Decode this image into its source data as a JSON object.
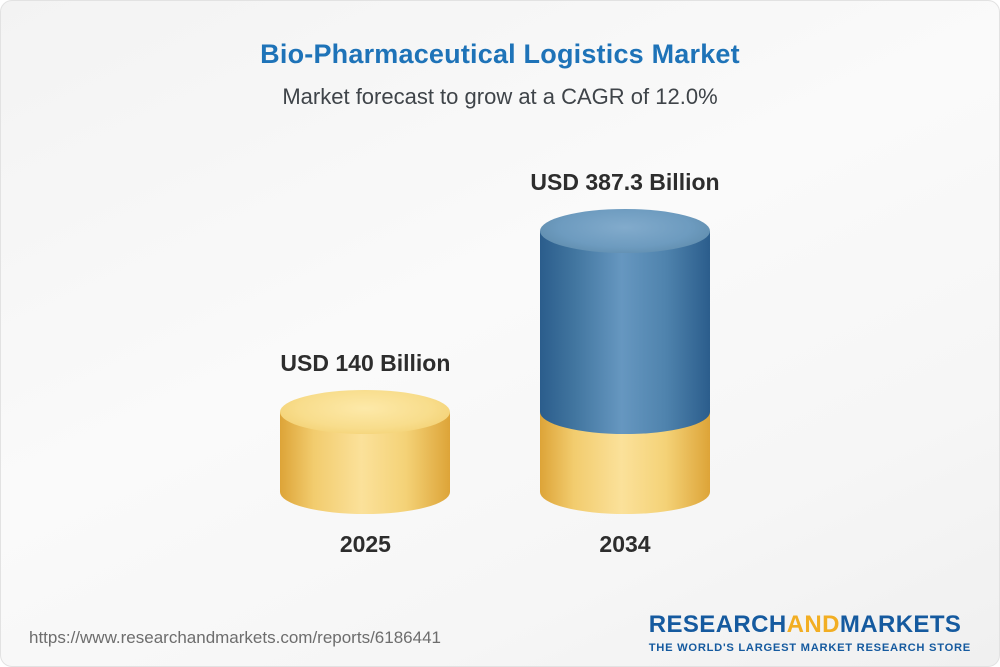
{
  "header": {
    "title": "Bio-Pharmaceutical Logistics Market",
    "subtitle": "Market forecast to grow at a CAGR of 12.0%"
  },
  "chart_data": {
    "type": "bar",
    "variant": "3d-cylinder",
    "title": "Bio-Pharmaceutical Logistics Market",
    "subtitle": "Market forecast to grow at a CAGR of 12.0%",
    "unit": "USD Billion",
    "categories": [
      "2025",
      "2034"
    ],
    "values": [
      140,
      387.3
    ],
    "value_labels": [
      "USD 140 Billion",
      "USD 387.3 Billion"
    ],
    "cagr_percent": 12.0,
    "axes": "none",
    "grid": false,
    "legend": "none",
    "colors": {
      "base_segment": "#f2cc6e",
      "growth_segment": "#4f83ad",
      "title_text": "#1e73b8",
      "label_text": "#2d2d2d"
    }
  },
  "footer": {
    "url": "https://www.researchandmarkets.com/reports/6186441",
    "logo": {
      "part1": "RESEARCH",
      "part2": "AND",
      "part3": "MARKETS",
      "tagline": "THE WORLD'S LARGEST MARKET RESEARCH STORE"
    }
  }
}
